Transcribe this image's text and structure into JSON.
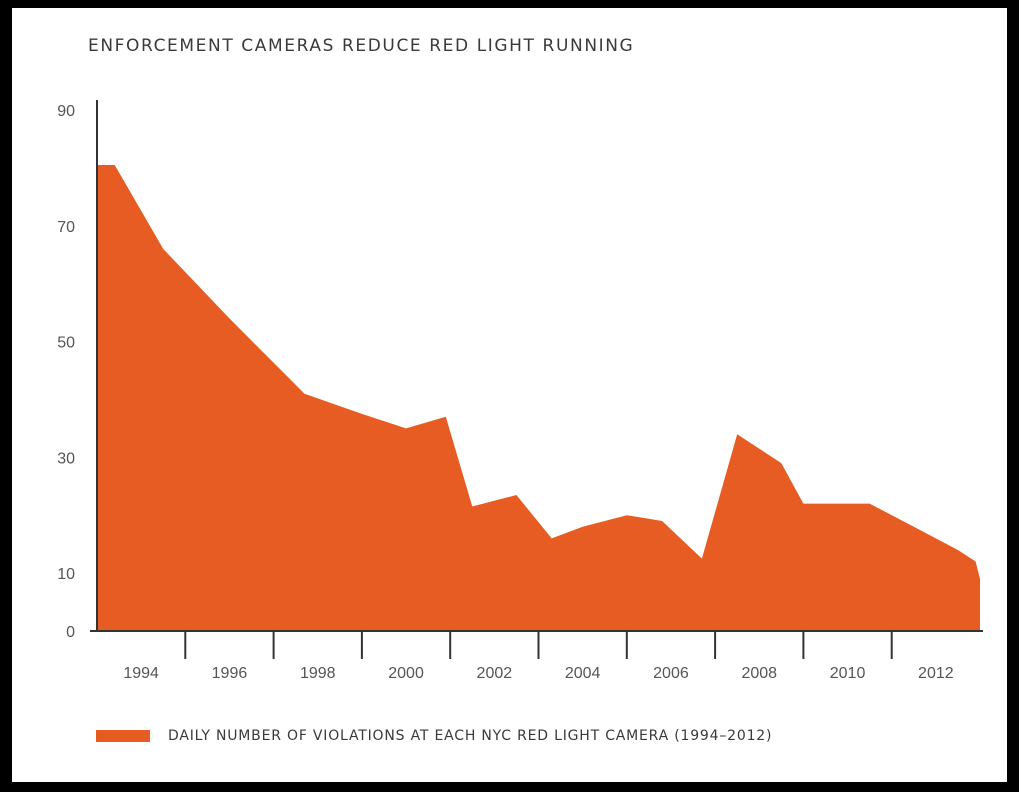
{
  "chart_data": {
    "type": "area",
    "title": "ENFORCEMENT CAMERAS REDUCE RED LIGHT RUNNING",
    "xlabel": "",
    "ylabel": "",
    "x_tick_labels": [
      "1994",
      "1996",
      "1998",
      "2000",
      "2002",
      "2004",
      "2006",
      "2008",
      "2010",
      "2012"
    ],
    "y_tick_labels": [
      "0",
      "10",
      "30",
      "50",
      "70",
      "90"
    ],
    "y_ticks": [
      0,
      10,
      30,
      50,
      70,
      90
    ],
    "xlim": [
      1993,
      2013
    ],
    "ylim": [
      0,
      90
    ],
    "grid": false,
    "legend_position": "bottom-left",
    "series": [
      {
        "name": "DAILY NUMBER OF VIOLATIONS AT EACH NYC RED LIGHT CAMERA (1994–2012)",
        "color": "#e65c22",
        "x": [
          1993.0,
          1993.4,
          1994.5,
          1996.0,
          1997.7,
          1999.0,
          2000.0,
          2000.9,
          2001.5,
          2002.5,
          2003.3,
          2004.0,
          2005.0,
          2005.8,
          2006.7,
          2007.5,
          2008.5,
          2009.0,
          2010.5,
          2011.5,
          2012.5,
          2012.9,
          2013.0
        ],
        "y": [
          80.5,
          80.5,
          66,
          54,
          41,
          37.5,
          35,
          37,
          21.5,
          23.5,
          16,
          18,
          20,
          19,
          12.5,
          34,
          29,
          22,
          22,
          18,
          14,
          12,
          9
        ]
      }
    ]
  }
}
